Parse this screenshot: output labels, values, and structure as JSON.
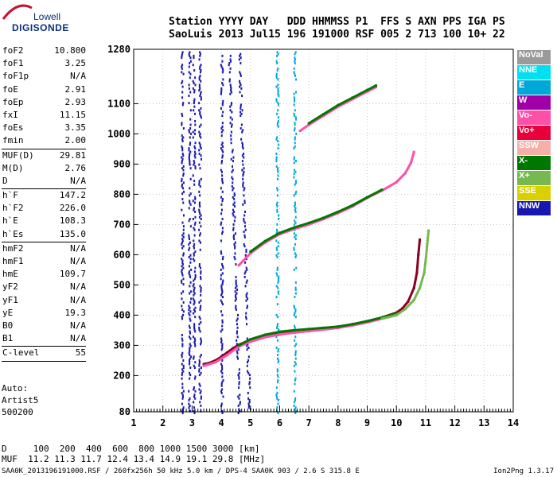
{
  "logo": {
    "line1": "Lowell",
    "line2": "DIGISONDE"
  },
  "header": {
    "labels": "Station YYYY DAY   DDD HHMMSS P1  FFS S AXN PPS IGA PS",
    "values": "SaoLuis 2013 Jul15 196 191000 RSF 005 2 713 100 10+ 22"
  },
  "params_top": [
    {
      "k": "foF2",
      "v": "10.800"
    },
    {
      "k": "foF1",
      "v": "3.25"
    },
    {
      "k": "foF1p",
      "v": "N/A"
    },
    {
      "k": "foE",
      "v": "2.91"
    },
    {
      "k": "foEp",
      "v": "2.93"
    },
    {
      "k": "fxI",
      "v": "11.15"
    },
    {
      "k": "foEs",
      "v": "3.35"
    },
    {
      "k": "fmin",
      "v": "2.00"
    }
  ],
  "params_muf": [
    {
      "k": "MUF(D)",
      "v": "29.81"
    },
    {
      "k": "M(D)",
      "v": "2.76"
    },
    {
      "k": "D",
      "v": "N/A"
    }
  ],
  "params_h": [
    {
      "k": "h`F",
      "v": "147.2"
    },
    {
      "k": "h`F2",
      "v": "226.0"
    },
    {
      "k": "h`E",
      "v": "108.3"
    },
    {
      "k": "h`Es",
      "v": "135.0"
    }
  ],
  "params_hm": [
    {
      "k": "hmF2",
      "v": "N/A"
    },
    {
      "k": "hmF1",
      "v": "N/A"
    },
    {
      "k": "hmE",
      "v": "109.7"
    },
    {
      "k": "yF2",
      "v": "N/A"
    },
    {
      "k": "yF1",
      "v": "N/A"
    },
    {
      "k": "yE",
      "v": "19.3"
    },
    {
      "k": "B0",
      "v": "N/A"
    },
    {
      "k": "B1",
      "v": "N/A"
    }
  ],
  "params_c": [
    {
      "k": "C-level",
      "v": "55"
    }
  ],
  "auto": {
    "l1": "Auto:",
    "l2": "Artist5",
    "l3": "500200"
  },
  "bottom": {
    "d_row": "D     100  200  400  600  800 1000 1500 3000 [km]",
    "muf_row": "MUF  11.2 11.3 11.7 12.4 13.4 14.9 19.1 29.8 [MHz]"
  },
  "footer": {
    "left": "SAA0K_2013196191000.RSF / 260fx256h 50 kHz 5.0 km / DPS-4 SAA0K 903 / 2.6 S 315.8 E",
    "right": "Ion2Png 1.3.17"
  },
  "legend": [
    {
      "label": "NoVal",
      "color": "#9a9a9a"
    },
    {
      "label": "NNE",
      "color": "#00e0f0"
    },
    {
      "label": "E",
      "color": "#00a8d8"
    },
    {
      "label": "W",
      "color": "#a000a8"
    },
    {
      "label": "Vo-",
      "color": "#ff50a8"
    },
    {
      "label": "Vo+",
      "color": "#e8003a"
    },
    {
      "label": "SSW",
      "color": "#f4b0a8"
    },
    {
      "label": "X-",
      "color": "#007800"
    },
    {
      "label": "X+",
      "color": "#78b850"
    },
    {
      "label": "SSE",
      "color": "#d8d000"
    },
    {
      "label": "NNW",
      "color": "#1818b0"
    }
  ],
  "chart_data": {
    "type": "scatter",
    "title": "",
    "xlabel": "",
    "ylabel": "",
    "xlim": [
      1,
      14
    ],
    "ylim": [
      80,
      1280
    ],
    "x_ticks": [
      1,
      2,
      3,
      4,
      5,
      6,
      7,
      8,
      9,
      10,
      11,
      12,
      13,
      14
    ],
    "y_ticks": [
      80,
      200,
      300,
      400,
      500,
      600,
      700,
      800,
      900,
      1000,
      1100,
      1280
    ],
    "grid": true,
    "legend_position": "right",
    "series": [
      {
        "name": "Vo+",
        "color": "#8b0024",
        "points": [
          [
            3.4,
            238
          ],
          [
            3.6,
            242
          ],
          [
            3.8,
            250
          ],
          [
            4.0,
            262
          ],
          [
            4.2,
            276
          ],
          [
            4.4,
            290
          ],
          [
            4.6,
            302
          ],
          [
            5.0,
            318
          ],
          [
            5.5,
            332
          ],
          [
            6.0,
            340
          ],
          [
            6.5,
            346
          ],
          [
            7.0,
            351
          ],
          [
            7.5,
            356
          ],
          [
            8.0,
            362
          ],
          [
            8.5,
            370
          ],
          [
            9.0,
            380
          ],
          [
            9.5,
            392
          ],
          [
            10.0,
            408
          ],
          [
            10.2,
            422
          ],
          [
            10.4,
            445
          ],
          [
            10.6,
            490
          ],
          [
            10.7,
            540
          ],
          [
            10.75,
            600
          ],
          [
            10.8,
            650
          ]
        ]
      },
      {
        "name": "Vo-",
        "color": "#ff50a8",
        "points": [
          [
            3.4,
            232
          ],
          [
            3.8,
            244
          ],
          [
            4.2,
            268
          ],
          [
            4.6,
            296
          ],
          [
            5.0,
            312
          ],
          [
            5.5,
            327
          ],
          [
            6.0,
            336
          ],
          [
            6.5,
            342
          ],
          [
            7.0,
            347
          ],
          [
            7.5,
            352
          ],
          [
            8.0,
            358
          ],
          [
            8.5,
            366
          ],
          [
            9.0,
            376
          ],
          [
            9.5,
            388
          ],
          [
            10.0,
            400
          ]
        ]
      },
      {
        "name": "X-",
        "color": "#007800",
        "points": [
          [
            4.6,
            300
          ],
          [
            5.0,
            320
          ],
          [
            5.5,
            335
          ],
          [
            6.0,
            345
          ],
          [
            6.5,
            350
          ],
          [
            7.0,
            354
          ],
          [
            7.5,
            358
          ],
          [
            8.0,
            362
          ],
          [
            8.5,
            370
          ],
          [
            9.0,
            380
          ],
          [
            9.5,
            392
          ],
          [
            10.0,
            405
          ]
        ]
      },
      {
        "name": "X+",
        "color": "#78b850",
        "points": [
          [
            9.5,
            388
          ],
          [
            10.0,
            400
          ],
          [
            10.3,
            420
          ],
          [
            10.6,
            450
          ],
          [
            10.8,
            490
          ],
          [
            10.95,
            540
          ],
          [
            11.0,
            580
          ],
          [
            11.05,
            630
          ],
          [
            11.1,
            680
          ]
        ]
      },
      {
        "name": "2hop",
        "color": "#ff50a8",
        "points": [
          [
            4.6,
            565
          ],
          [
            5.0,
            605
          ],
          [
            5.5,
            640
          ],
          [
            6.0,
            668
          ],
          [
            6.5,
            685
          ],
          [
            7.0,
            700
          ],
          [
            7.5,
            718
          ],
          [
            8.0,
            738
          ],
          [
            8.5,
            760
          ],
          [
            9.0,
            788
          ],
          [
            9.5,
            812
          ],
          [
            10.0,
            840
          ],
          [
            10.3,
            870
          ],
          [
            10.5,
            905
          ],
          [
            10.6,
            940
          ]
        ]
      },
      {
        "name": "2hop-x",
        "color": "#007800",
        "points": [
          [
            5.0,
            610
          ],
          [
            5.5,
            645
          ],
          [
            6.0,
            672
          ],
          [
            6.5,
            690
          ],
          [
            7.0,
            705
          ],
          [
            7.5,
            722
          ],
          [
            8.0,
            742
          ],
          [
            8.5,
            764
          ],
          [
            9.0,
            790
          ],
          [
            9.5,
            815
          ]
        ]
      },
      {
        "name": "3hop",
        "color": "#ff50a8",
        "points": [
          [
            6.7,
            1010
          ],
          [
            7.0,
            1030
          ],
          [
            7.5,
            1060
          ],
          [
            8.0,
            1090
          ],
          [
            8.5,
            1115
          ],
          [
            9.0,
            1140
          ],
          [
            9.3,
            1155
          ]
        ]
      },
      {
        "name": "3hop-x",
        "color": "#007800",
        "points": [
          [
            7.0,
            1035
          ],
          [
            7.5,
            1065
          ],
          [
            8.0,
            1095
          ],
          [
            8.5,
            1120
          ],
          [
            9.0,
            1145
          ],
          [
            9.3,
            1160
          ]
        ]
      }
    ],
    "interference_columns": [
      {
        "x": 2.65,
        "color": "#1818b0"
      },
      {
        "x": 2.9,
        "color": "#1818b0"
      },
      {
        "x": 3.05,
        "color": "#1818b0"
      },
      {
        "x": 3.25,
        "color": "#1818b0"
      },
      {
        "x": 4.0,
        "color": "#1818b0"
      },
      {
        "x": 4.6,
        "color": "#1818b0"
      },
      {
        "x": 4.95,
        "color": "#1818b0"
      },
      {
        "x": 5.9,
        "color": "#00a8d8"
      },
      {
        "x": 6.5,
        "color": "#00a8d8"
      }
    ]
  }
}
